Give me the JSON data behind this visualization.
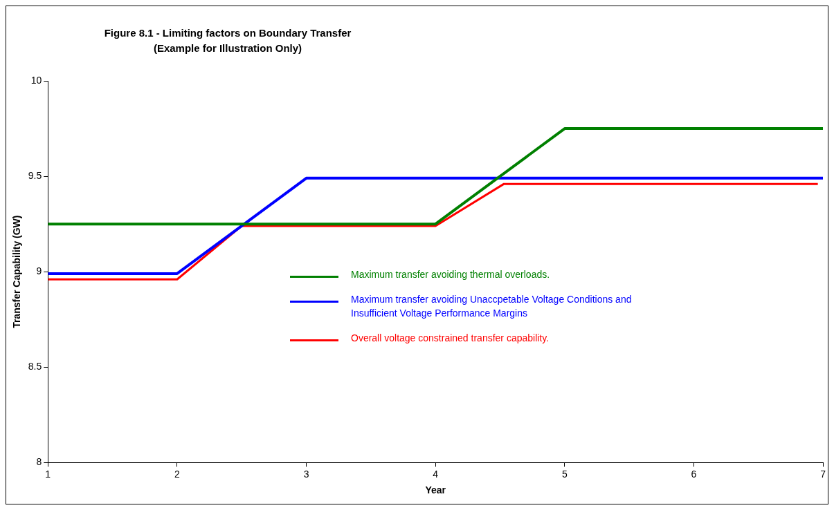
{
  "chart_data": {
    "type": "line",
    "title": "Figure 8.1 - Limiting factors on Boundary Transfer",
    "subtitle": "(Example for Illustration Only)",
    "xlabel": "Year",
    "ylabel": "Transfer Capability (GW)",
    "series": [
      {
        "name": "Maximum transfer avoiding thermal overloads.",
        "color": "#008000",
        "x": [
          1,
          4,
          5,
          7
        ],
        "values": [
          9.25,
          9.25,
          9.75,
          9.75
        ]
      },
      {
        "name": "Maximum transfer avoiding Unaccpetable Voltage Conditions and Insufficient Voltage Performance Margins",
        "color": "#0000ff",
        "x": [
          1,
          2,
          3,
          7
        ],
        "values": [
          8.99,
          8.99,
          9.49,
          9.49
        ]
      },
      {
        "name": "Overall voltage constrained transfer capability.",
        "color": "#ff0000",
        "x": [
          1,
          2,
          2.5,
          4,
          4.53,
          6.96
        ],
        "values": [
          8.96,
          8.96,
          9.24,
          9.24,
          9.46,
          9.46
        ]
      }
    ],
    "xlim": [
      1,
      7
    ],
    "xticks": [
      1,
      2,
      3,
      4,
      5,
      6,
      7
    ],
    "ylim": [
      8,
      10
    ],
    "yticks": [
      8,
      8.5,
      9,
      9.5,
      10
    ],
    "grid": false,
    "legend": "center",
    "marker": "none",
    "line_style": "solid"
  }
}
